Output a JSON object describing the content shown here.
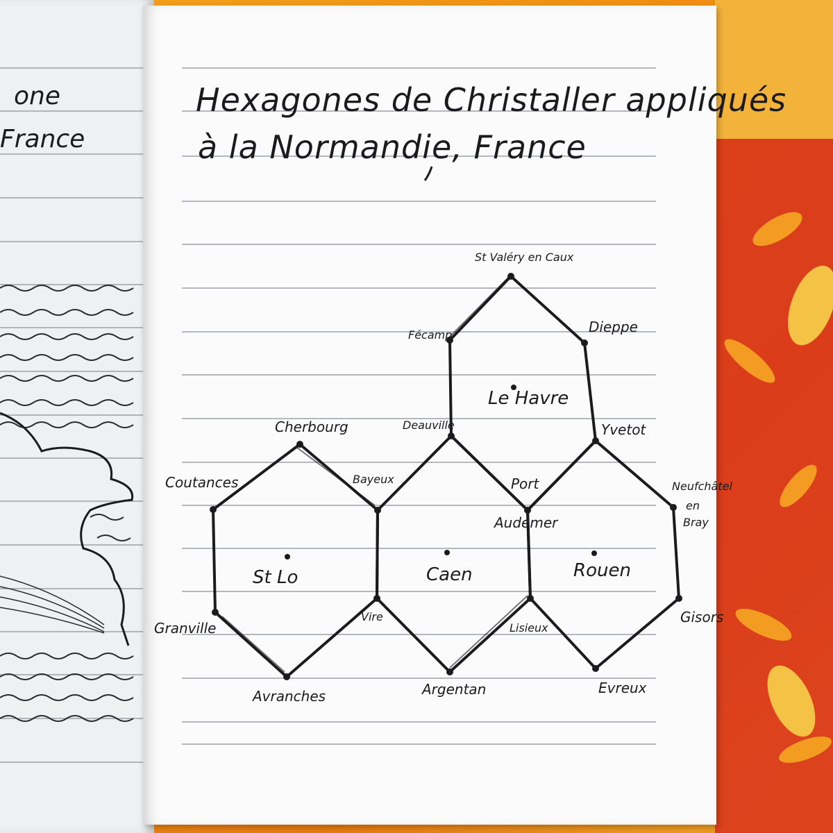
{
  "title": {
    "line1": "Hexagones de Christaller appliqués",
    "line2": "à la Normandie, France"
  },
  "left_page_fragments": {
    "word1": "one",
    "word2": "France"
  },
  "diagram": {
    "centers": [
      "Le Havre",
      "St Lo",
      "Caen",
      "Rouen"
    ],
    "vertices": {
      "st_valery": "St Valéry en Caux",
      "fecamp": "Fécamp",
      "dieppe": "Dieppe",
      "deauville": "Deauville",
      "yvetot": "Yvetot",
      "cherbourg": "Cherbourg",
      "coutances": "Coutances",
      "bayeux": "Bayeux",
      "port_audemer_1": "Port",
      "port_audemer_2": "Audemer",
      "neufchatel_1": "Neufchâtel",
      "neufchatel_2": "en",
      "neufchatel_3": "Bray",
      "granville": "Granville",
      "vire": "Vire",
      "lisieux": "Lisieux",
      "gisors": "Gisors",
      "avranches": "Avranches",
      "argentan": "Argentan",
      "evreux": "Evreux"
    }
  },
  "colors": {
    "ink": "#1b1b1e",
    "paper": "#fbfbfb",
    "rule": "#8a8f96",
    "cloth_orange": "#ef8f12",
    "cloth_red": "#d8331c"
  }
}
